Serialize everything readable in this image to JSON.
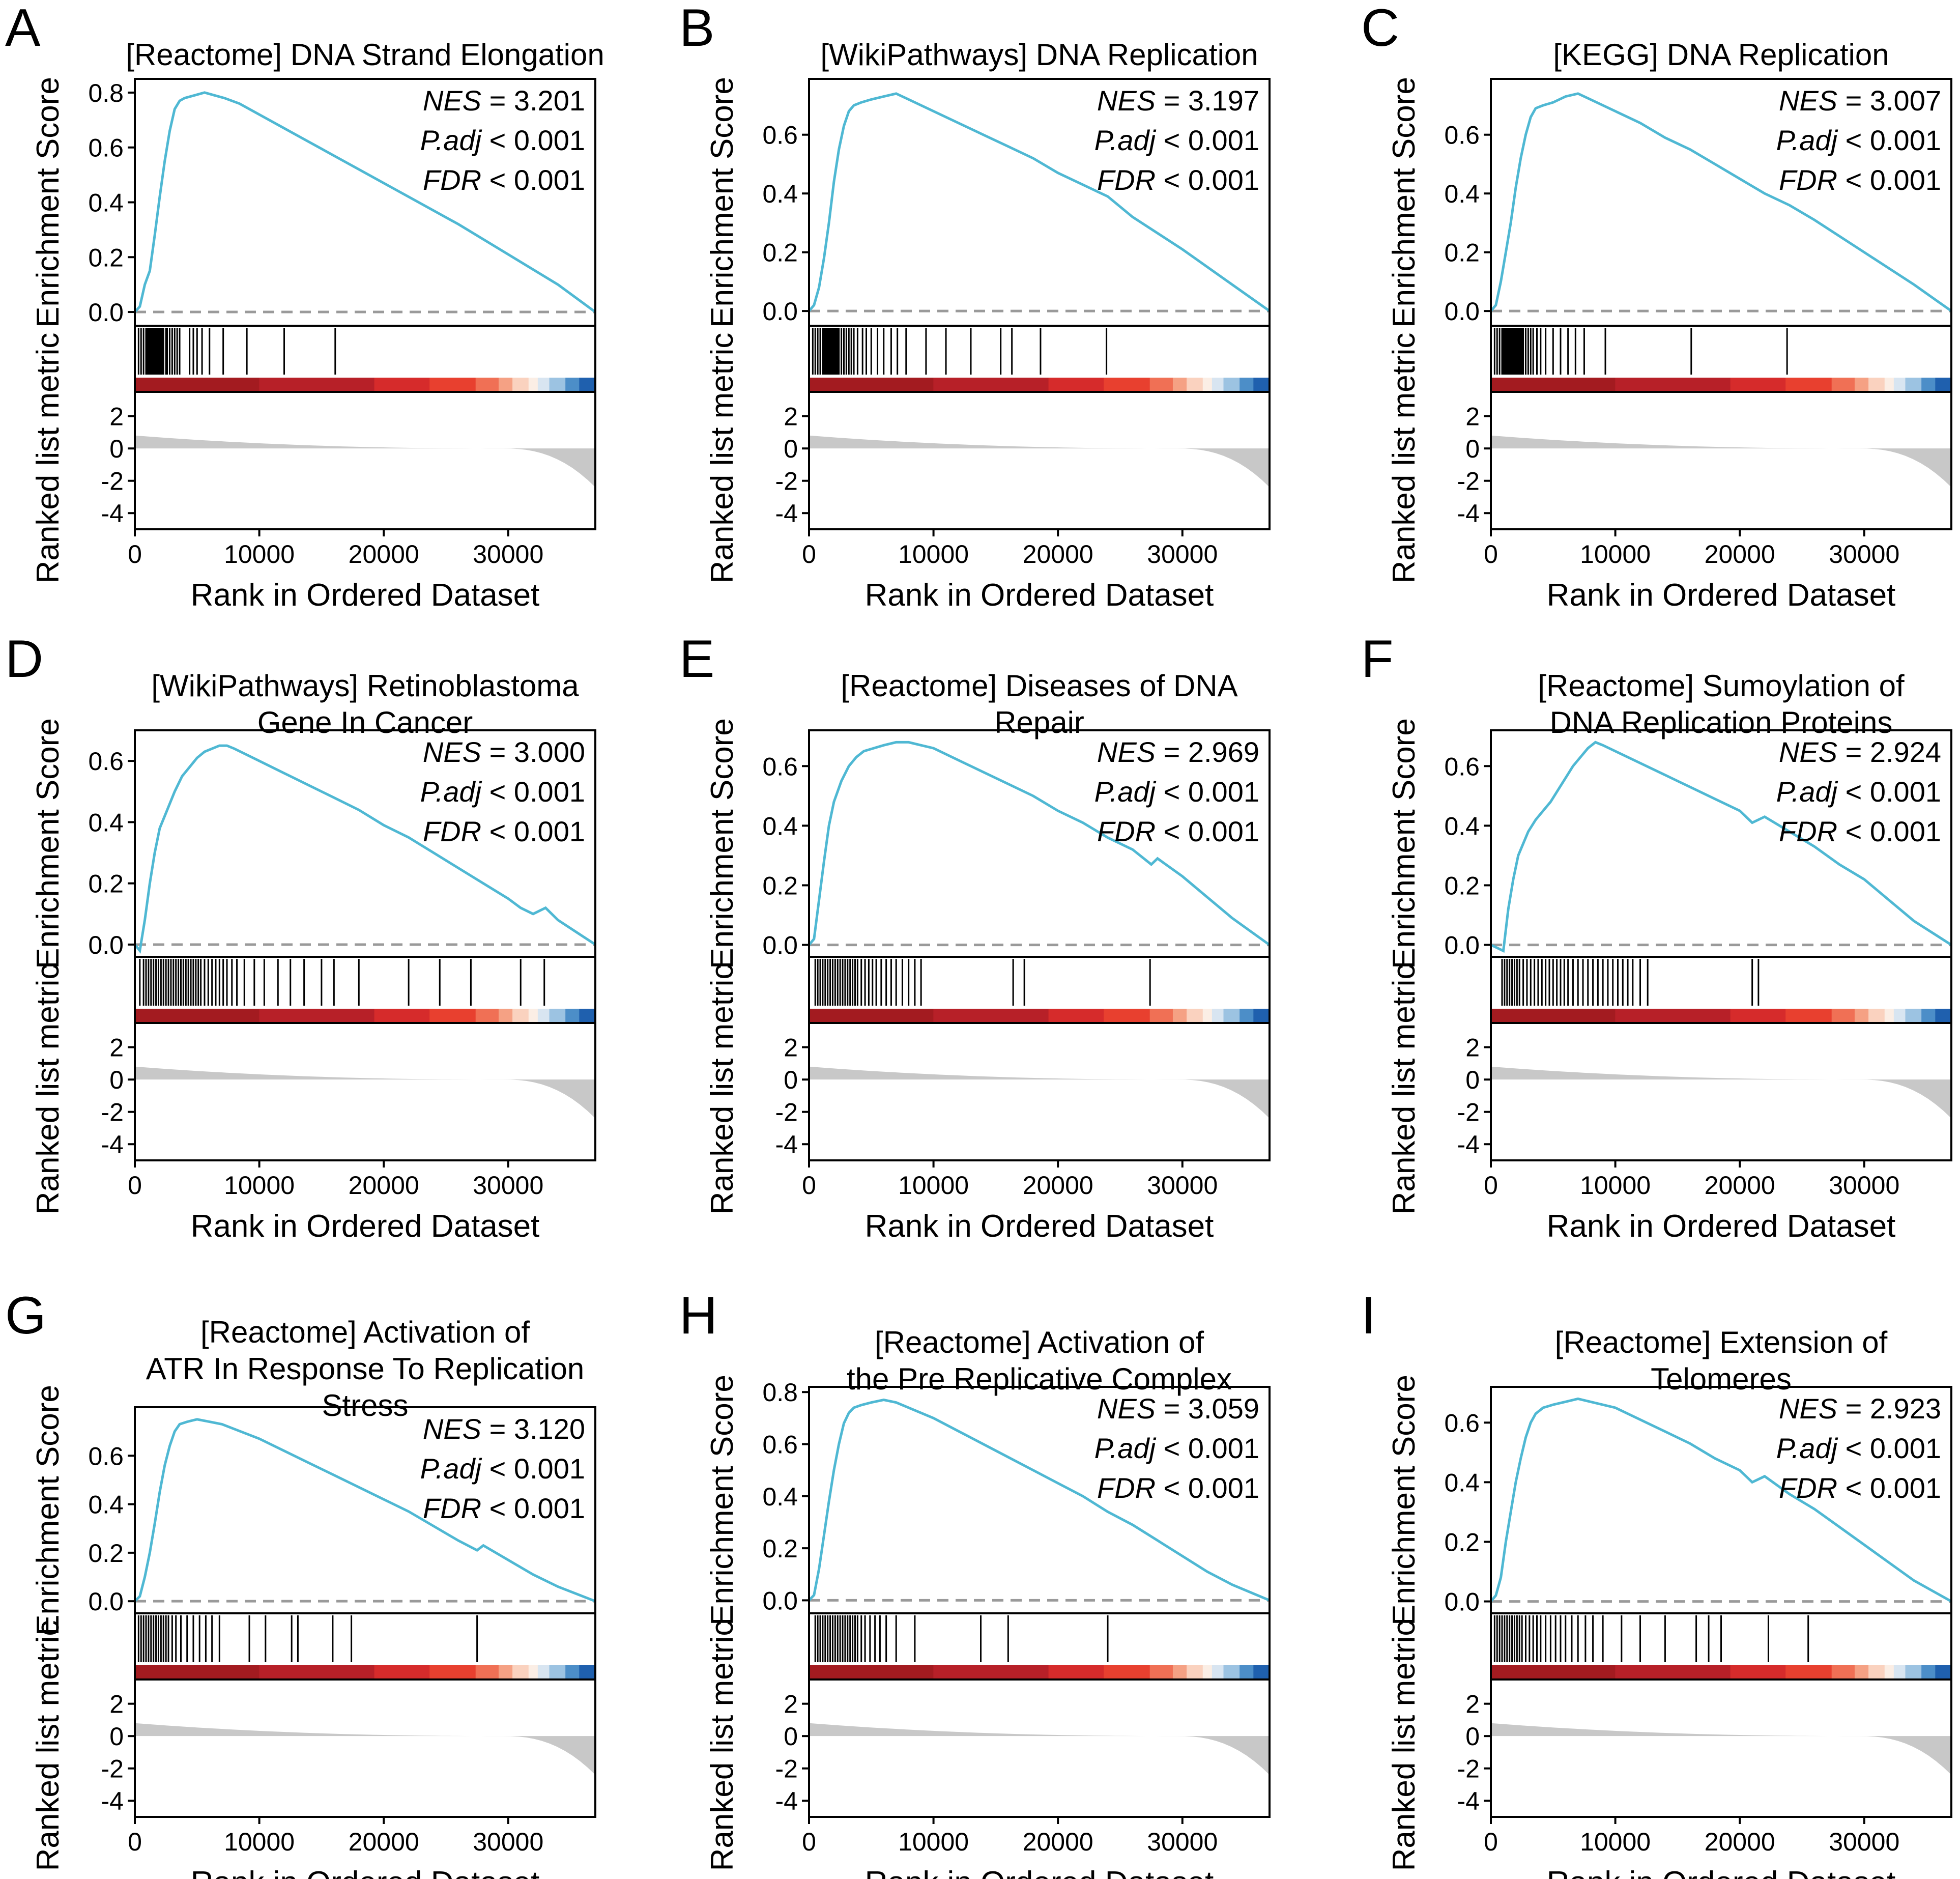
{
  "figure": {
    "common": {
      "xlabel": "Rank in Ordered Dataset",
      "ylabel_top": "Enrichment Score",
      "ylabel_bottom": "Ranked list metric",
      "stat_labels": {
        "nes": "NES",
        "padj": "P.adj",
        "fdr": "FDR"
      },
      "curve_color": "#4fb8d3",
      "hit_color": "#000000",
      "metric_fill_color": "#c8c8c8",
      "zero_line_color": "#9a9a9a",
      "heat_colors": [
        "#a31b20",
        "#b72028",
        "#d62b2b",
        "#e8402f",
        "#f07055",
        "#f5a184",
        "#fad2bf",
        "#fbeee5",
        "#d8e5f1",
        "#9cc3e2",
        "#4c8ec8",
        "#1f60ae"
      ]
    }
  },
  "chart_data": [
    {
      "letter": "A",
      "type": "line",
      "title_lines": [
        "[Reactome] DNA Strand Elongation"
      ],
      "nes": "= 3.201",
      "padj": "< 0.001",
      "fdr": "< 0.001",
      "xlabel": "Rank in Ordered Dataset",
      "ylabel": "Enrichment Score",
      "xlim": [
        0,
        37000
      ],
      "ylim": [
        -0.05,
        0.85
      ],
      "x_ticks": [
        0,
        10000,
        20000,
        30000
      ],
      "y_ticks": [
        0.0,
        0.2,
        0.4,
        0.6,
        0.8
      ],
      "metric_ticks": [
        2,
        0,
        -2,
        -4
      ],
      "metric_ylim": [
        -5,
        3.5
      ],
      "es_x": [
        0,
        400,
        800,
        1200,
        1600,
        2000,
        2400,
        2800,
        3200,
        3600,
        4000,
        4800,
        5600,
        6400,
        7200,
        8400,
        10000,
        12000,
        14000,
        16000,
        18000,
        22000,
        26000,
        30000,
        34000,
        37000
      ],
      "es_y": [
        0,
        0.02,
        0.1,
        0.15,
        0.28,
        0.42,
        0.55,
        0.66,
        0.74,
        0.77,
        0.78,
        0.79,
        0.8,
        0.79,
        0.78,
        0.76,
        0.72,
        0.67,
        0.62,
        0.57,
        0.52,
        0.42,
        0.32,
        0.21,
        0.1,
        0
      ],
      "hits": [
        300,
        500,
        700,
        900,
        1000,
        1100,
        1200,
        1300,
        1400,
        1500,
        1600,
        1700,
        1800,
        1900,
        2000,
        2100,
        2200,
        2300,
        2500,
        2600,
        2800,
        3000,
        3200,
        3400,
        3600,
        4400,
        4700,
        5000,
        5400,
        6000,
        7100,
        9000,
        12000,
        16100
      ]
    },
    {
      "letter": "B",
      "type": "line",
      "title_lines": [
        "[WikiPathways] DNA Replication"
      ],
      "nes": "= 3.197",
      "padj": "< 0.001",
      "fdr": "< 0.001",
      "xlabel": "Rank in Ordered Dataset",
      "ylabel": "Enrichment Score",
      "xlim": [
        0,
        37000
      ],
      "ylim": [
        -0.05,
        0.79
      ],
      "x_ticks": [
        0,
        10000,
        20000,
        30000
      ],
      "y_ticks": [
        0.0,
        0.2,
        0.4,
        0.6
      ],
      "metric_ticks": [
        2,
        0,
        -2,
        -4
      ],
      "metric_ylim": [
        -5,
        3.5
      ],
      "es_x": [
        0,
        400,
        800,
        1200,
        1600,
        2000,
        2400,
        2800,
        3200,
        3600,
        4200,
        5000,
        6000,
        7000,
        8000,
        10000,
        12000,
        14000,
        16000,
        18000,
        20000,
        22000,
        24000,
        26000,
        30000,
        34000,
        37000
      ],
      "es_y": [
        0,
        0.02,
        0.08,
        0.18,
        0.3,
        0.44,
        0.55,
        0.63,
        0.68,
        0.7,
        0.71,
        0.72,
        0.73,
        0.74,
        0.72,
        0.68,
        0.64,
        0.6,
        0.56,
        0.52,
        0.47,
        0.43,
        0.39,
        0.32,
        0.21,
        0.09,
        0
      ],
      "hits": [
        300,
        500,
        700,
        900,
        1100,
        1200,
        1300,
        1400,
        1500,
        1600,
        1700,
        1800,
        1900,
        2000,
        2100,
        2200,
        2300,
        2400,
        2600,
        2800,
        3000,
        3200,
        3400,
        3600,
        3900,
        4300,
        4600,
        5000,
        5500,
        6000,
        6600,
        7100,
        7800,
        9400,
        11000,
        13000,
        15400,
        16300,
        18600,
        23900
      ]
    },
    {
      "letter": "C",
      "type": "line",
      "title_lines": [
        "[KEGG] DNA Replication"
      ],
      "nes": "= 3.007",
      "padj": "< 0.001",
      "fdr": "< 0.001",
      "xlabel": "Rank in Ordered Dataset",
      "ylabel": "Enrichment Score",
      "xlim": [
        0,
        37000
      ],
      "ylim": [
        -0.05,
        0.79
      ],
      "x_ticks": [
        0,
        10000,
        20000,
        30000
      ],
      "y_ticks": [
        0.0,
        0.2,
        0.4,
        0.6
      ],
      "metric_ticks": [
        2,
        0,
        -2,
        -4
      ],
      "metric_ylim": [
        -5,
        3.5
      ],
      "es_x": [
        0,
        400,
        800,
        1200,
        1600,
        2000,
        2400,
        2800,
        3200,
        3600,
        4200,
        5000,
        6000,
        7000,
        8000,
        10000,
        12000,
        14000,
        16000,
        18000,
        20000,
        22000,
        24000,
        26000,
        30000,
        34000,
        37000
      ],
      "es_y": [
        0,
        0.02,
        0.1,
        0.2,
        0.3,
        0.42,
        0.52,
        0.6,
        0.66,
        0.69,
        0.7,
        0.71,
        0.73,
        0.74,
        0.72,
        0.68,
        0.64,
        0.59,
        0.55,
        0.5,
        0.45,
        0.4,
        0.36,
        0.31,
        0.2,
        0.09,
        0
      ],
      "hits": [
        300,
        500,
        700,
        900,
        1000,
        1100,
        1200,
        1300,
        1400,
        1500,
        1600,
        1700,
        1800,
        1900,
        2000,
        2100,
        2200,
        2300,
        2400,
        2500,
        2600,
        2800,
        3000,
        3200,
        3400,
        3700,
        4000,
        4400,
        5000,
        5600,
        6200,
        6800,
        7500,
        9200,
        16100,
        23800
      ]
    },
    {
      "letter": "D",
      "type": "line",
      "title_lines": [
        "[WikiPathways] Retinoblastoma",
        "Gene In Cancer"
      ],
      "nes": "= 3.000",
      "padj": "< 0.001",
      "fdr": "< 0.001",
      "xlabel": "Rank in Ordered Dataset",
      "ylabel": "Enrichment Score",
      "xlim": [
        0,
        37000
      ],
      "ylim": [
        -0.04,
        0.7
      ],
      "x_ticks": [
        0,
        10000,
        20000,
        30000
      ],
      "y_ticks": [
        0.0,
        0.2,
        0.4,
        0.6
      ],
      "metric_ticks": [
        2,
        0,
        -2,
        -4
      ],
      "metric_ylim": [
        -5,
        3.5
      ],
      "es_x": [
        0,
        400,
        800,
        1200,
        1600,
        2000,
        2600,
        3200,
        3800,
        4400,
        5000,
        5600,
        6200,
        6800,
        7400,
        8000,
        10000,
        12000,
        14000,
        16000,
        18000,
        20000,
        22000,
        24000,
        26000,
        28000,
        30000,
        31000,
        32000,
        33000,
        34000,
        35500,
        37000
      ],
      "es_y": [
        0,
        -0.02,
        0.08,
        0.2,
        0.3,
        0.38,
        0.44,
        0.5,
        0.55,
        0.58,
        0.61,
        0.63,
        0.64,
        0.65,
        0.65,
        0.64,
        0.6,
        0.56,
        0.52,
        0.48,
        0.44,
        0.39,
        0.35,
        0.3,
        0.25,
        0.2,
        0.15,
        0.12,
        0.1,
        0.12,
        0.08,
        0.04,
        0
      ],
      "hits": [
        400,
        700,
        900,
        1100,
        1300,
        1500,
        1700,
        1900,
        2100,
        2300,
        2500,
        2700,
        2900,
        3100,
        3300,
        3500,
        3700,
        3900,
        4100,
        4300,
        4500,
        4700,
        4900,
        5100,
        5300,
        5600,
        5900,
        6200,
        6500,
        6800,
        7100,
        7400,
        7800,
        8200,
        8800,
        9600,
        10400,
        11500,
        12500,
        13600,
        15000,
        16000,
        18000,
        22000,
        24500,
        27000,
        31000,
        32900
      ]
    },
    {
      "letter": "E",
      "type": "line",
      "title_lines": [
        "[Reactome] Diseases of DNA",
        "Repair"
      ],
      "nes": "= 2.969",
      "padj": "< 0.001",
      "fdr": "< 0.001",
      "xlabel": "Rank in Ordered Dataset",
      "ylabel": "Enrichment Score",
      "xlim": [
        0,
        37000
      ],
      "ylim": [
        -0.04,
        0.72
      ],
      "x_ticks": [
        0,
        10000,
        20000,
        30000
      ],
      "y_ticks": [
        0.0,
        0.2,
        0.4,
        0.6
      ],
      "metric_ticks": [
        2,
        0,
        -2,
        -4
      ],
      "metric_ylim": [
        -5,
        3.5
      ],
      "es_x": [
        0,
        400,
        800,
        1200,
        1600,
        2000,
        2600,
        3200,
        3800,
        4400,
        5200,
        6000,
        7000,
        8000,
        9000,
        10000,
        12000,
        14000,
        16000,
        18000,
        20000,
        22000,
        24000,
        26000,
        27500,
        28000,
        30000,
        32000,
        34000,
        37000
      ],
      "es_y": [
        0,
        0.02,
        0.15,
        0.28,
        0.4,
        0.48,
        0.55,
        0.6,
        0.63,
        0.65,
        0.66,
        0.67,
        0.68,
        0.68,
        0.67,
        0.66,
        0.62,
        0.58,
        0.54,
        0.5,
        0.45,
        0.41,
        0.36,
        0.32,
        0.27,
        0.29,
        0.23,
        0.16,
        0.09,
        0
      ],
      "hits": [
        500,
        700,
        900,
        1100,
        1300,
        1500,
        1700,
        1900,
        2100,
        2300,
        2500,
        2700,
        2900,
        3100,
        3300,
        3500,
        3700,
        3900,
        4200,
        4500,
        4800,
        5100,
        5400,
        5800,
        6200,
        6600,
        7000,
        7500,
        8000,
        8500,
        9000,
        16400,
        17300,
        27400
      ]
    },
    {
      "letter": "F",
      "type": "line",
      "title_lines": [
        "[Reactome] Sumoylation of",
        "DNA Replication Proteins"
      ],
      "nes": "= 2.924",
      "padj": "< 0.001",
      "fdr": "< 0.001",
      "xlabel": "Rank in Ordered Dataset",
      "ylabel": "Enrichment Score",
      "xlim": [
        0,
        37000
      ],
      "ylim": [
        -0.04,
        0.72
      ],
      "x_ticks": [
        0,
        10000,
        20000,
        30000
      ],
      "y_ticks": [
        0.0,
        0.2,
        0.4,
        0.6
      ],
      "metric_ticks": [
        2,
        0,
        -2,
        -4
      ],
      "metric_ylim": [
        -5,
        3.5
      ],
      "es_x": [
        0,
        500,
        1000,
        1400,
        1800,
        2200,
        2600,
        3000,
        3600,
        4200,
        4800,
        5400,
        6000,
        6600,
        7200,
        7800,
        8400,
        9000,
        10000,
        12000,
        14000,
        16000,
        18000,
        20000,
        21000,
        22000,
        24000,
        26000,
        28000,
        30000,
        32000,
        34000,
        37000
      ],
      "es_y": [
        0,
        -0.01,
        -0.02,
        0.12,
        0.22,
        0.3,
        0.34,
        0.38,
        0.42,
        0.45,
        0.48,
        0.52,
        0.56,
        0.6,
        0.63,
        0.66,
        0.68,
        0.67,
        0.65,
        0.61,
        0.57,
        0.53,
        0.49,
        0.45,
        0.41,
        0.43,
        0.38,
        0.33,
        0.27,
        0.22,
        0.15,
        0.08,
        0
      ],
      "hits": [
        900,
        1100,
        1300,
        1500,
        1700,
        1900,
        2100,
        2300,
        2600,
        2900,
        3200,
        3500,
        3800,
        4100,
        4400,
        4700,
        5000,
        5300,
        5600,
        5900,
        6200,
        6600,
        7000,
        7400,
        7800,
        8200,
        8600,
        9000,
        9400,
        9800,
        10200,
        10600,
        11000,
        11400,
        12000,
        12600,
        21000,
        21500
      ]
    },
    {
      "letter": "G",
      "type": "line",
      "title_lines": [
        "[Reactome] Activation of",
        "ATR In Response To Replication",
        "Stress"
      ],
      "nes": "= 3.120",
      "padj": "< 0.001",
      "fdr": "< 0.001",
      "xlabel": "Rank in Ordered Dataset",
      "ylabel": "Enrichment Score",
      "xlim": [
        0,
        37000
      ],
      "ylim": [
        -0.05,
        0.8
      ],
      "x_ticks": [
        0,
        10000,
        20000,
        30000
      ],
      "y_ticks": [
        0.0,
        0.2,
        0.4,
        0.6
      ],
      "metric_ticks": [
        2,
        0,
        -2,
        -4
      ],
      "metric_ylim": [
        -5,
        3.5
      ],
      "es_x": [
        0,
        400,
        800,
        1200,
        1600,
        2000,
        2400,
        2800,
        3200,
        3600,
        4200,
        5000,
        6000,
        7000,
        8000,
        10000,
        12000,
        14000,
        16000,
        18000,
        20000,
        22000,
        24000,
        26000,
        27500,
        28000,
        30000,
        32000,
        34000,
        37000
      ],
      "es_y": [
        0,
        0.02,
        0.1,
        0.2,
        0.32,
        0.45,
        0.56,
        0.64,
        0.7,
        0.73,
        0.74,
        0.75,
        0.74,
        0.73,
        0.71,
        0.67,
        0.62,
        0.57,
        0.52,
        0.47,
        0.42,
        0.37,
        0.31,
        0.25,
        0.21,
        0.23,
        0.17,
        0.11,
        0.06,
        0
      ],
      "hits": [
        300,
        500,
        700,
        900,
        1100,
        1300,
        1500,
        1700,
        1900,
        2100,
        2300,
        2500,
        2700,
        3000,
        3300,
        3700,
        4200,
        4700,
        5200,
        5700,
        6200,
        6800,
        9200,
        10500,
        12600,
        13100,
        15900,
        17400,
        27500
      ]
    },
    {
      "letter": "H",
      "type": "line",
      "title_lines": [
        "[Reactome] Activation of",
        "the Pre Replicative Complex"
      ],
      "nes": "= 3.059",
      "padj": "< 0.001",
      "fdr": "< 0.001",
      "xlabel": "Rank in Ordered Dataset",
      "ylabel": "Enrichment Score",
      "xlim": [
        0,
        37000
      ],
      "ylim": [
        -0.05,
        0.82
      ],
      "x_ticks": [
        0,
        10000,
        20000,
        30000
      ],
      "y_ticks": [
        0.0,
        0.2,
        0.4,
        0.6,
        0.8
      ],
      "metric_ticks": [
        2,
        0,
        -2,
        -4
      ],
      "metric_ylim": [
        -5,
        3.5
      ],
      "es_x": [
        0,
        400,
        800,
        1200,
        1600,
        2000,
        2400,
        2800,
        3200,
        3600,
        4200,
        5000,
        6000,
        7000,
        8000,
        10000,
        12000,
        14000,
        16000,
        18000,
        20000,
        22000,
        24000,
        26000,
        28000,
        30000,
        32000,
        34000,
        37000
      ],
      "es_y": [
        0,
        0.02,
        0.12,
        0.25,
        0.38,
        0.5,
        0.6,
        0.68,
        0.72,
        0.74,
        0.75,
        0.76,
        0.77,
        0.76,
        0.74,
        0.7,
        0.65,
        0.6,
        0.55,
        0.5,
        0.45,
        0.4,
        0.34,
        0.29,
        0.23,
        0.17,
        0.11,
        0.06,
        0
      ],
      "hits": [
        500,
        700,
        900,
        1100,
        1300,
        1500,
        1700,
        1900,
        2100,
        2300,
        2500,
        2700,
        2900,
        3100,
        3300,
        3500,
        3700,
        3900,
        4200,
        4500,
        4900,
        5300,
        5700,
        6200,
        7000,
        8500,
        13800,
        16000,
        24000
      ]
    },
    {
      "letter": "I",
      "type": "line",
      "title_lines": [
        "[Reactome] Extension of",
        "Telomeres"
      ],
      "nes": "= 2.923",
      "padj": "< 0.001",
      "fdr": "< 0.001",
      "xlabel": "Rank in Ordered Dataset",
      "ylabel": "Enrichment Score",
      "xlim": [
        0,
        37000
      ],
      "ylim": [
        -0.04,
        0.72
      ],
      "x_ticks": [
        0,
        10000,
        20000,
        30000
      ],
      "y_ticks": [
        0.0,
        0.2,
        0.4,
        0.6
      ],
      "metric_ticks": [
        2,
        0,
        -2,
        -4
      ],
      "metric_ylim": [
        -5,
        3.5
      ],
      "es_x": [
        0,
        400,
        800,
        1200,
        1600,
        2000,
        2400,
        2800,
        3200,
        3600,
        4200,
        5000,
        6000,
        7000,
        8000,
        10000,
        12000,
        14000,
        16000,
        18000,
        20000,
        21000,
        22000,
        24000,
        26000,
        28000,
        30000,
        32000,
        34000,
        37000
      ],
      "es_y": [
        0,
        0.02,
        0.08,
        0.2,
        0.3,
        0.4,
        0.48,
        0.55,
        0.6,
        0.63,
        0.65,
        0.66,
        0.67,
        0.68,
        0.67,
        0.65,
        0.61,
        0.57,
        0.53,
        0.48,
        0.44,
        0.4,
        0.42,
        0.36,
        0.31,
        0.25,
        0.19,
        0.13,
        0.07,
        0
      ],
      "hits": [
        300,
        500,
        700,
        900,
        1100,
        1300,
        1500,
        1700,
        1900,
        2100,
        2300,
        2500,
        2800,
        3100,
        3400,
        3700,
        4000,
        4400,
        4800,
        5200,
        5600,
        6000,
        6500,
        7000,
        7600,
        8200,
        9000,
        10500,
        12000,
        14000,
        16500,
        17500,
        18500,
        22300,
        25500
      ]
    }
  ]
}
